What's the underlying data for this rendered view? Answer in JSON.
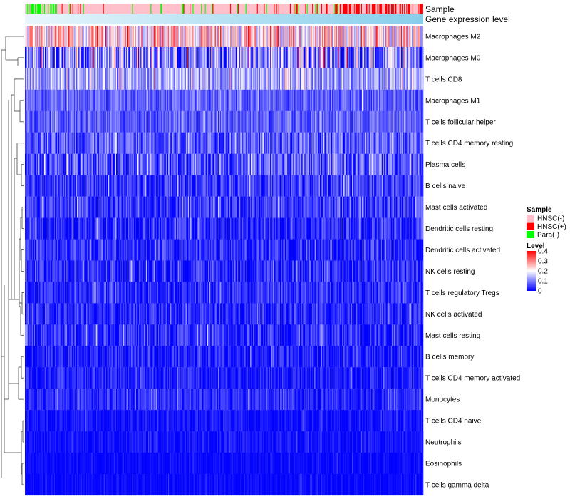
{
  "chart_data": {
    "type": "heatmap",
    "title": "",
    "annotation_tracks": [
      {
        "label": "Sample"
      },
      {
        "label": "Gene expression level"
      }
    ],
    "rows": [
      {
        "label": "Macrophages M2",
        "mean": 0.22,
        "spread": 0.12
      },
      {
        "label": "Macrophages M0",
        "mean": 0.1,
        "spread": 0.14
      },
      {
        "label": "T cells CD8",
        "mean": 0.13,
        "spread": 0.08
      },
      {
        "label": "Macrophages M1",
        "mean": 0.07,
        "spread": 0.05
      },
      {
        "label": "T cells follicular helper",
        "mean": 0.07,
        "spread": 0.05
      },
      {
        "label": "T cells CD4 memory resting",
        "mean": 0.07,
        "spread": 0.07
      },
      {
        "label": "Plasma cells",
        "mean": 0.06,
        "spread": 0.08
      },
      {
        "label": "B cells naive",
        "mean": 0.04,
        "spread": 0.06
      },
      {
        "label": "Mast cells activated",
        "mean": 0.04,
        "spread": 0.06
      },
      {
        "label": "Dendritic cells resting",
        "mean": 0.03,
        "spread": 0.06
      },
      {
        "label": "Dendritic cells activated",
        "mean": 0.03,
        "spread": 0.06
      },
      {
        "label": "NK cells resting",
        "mean": 0.03,
        "spread": 0.06
      },
      {
        "label": "T cells regulatory  Tregs",
        "mean": 0.03,
        "spread": 0.05
      },
      {
        "label": "NK cells activated",
        "mean": 0.03,
        "spread": 0.05
      },
      {
        "label": "Mast cells resting",
        "mean": 0.03,
        "spread": 0.06
      },
      {
        "label": "B cells memory",
        "mean": 0.02,
        "spread": 0.05
      },
      {
        "label": "T cells CD4 memory activated",
        "mean": 0.02,
        "spread": 0.04
      },
      {
        "label": "Monocytes",
        "mean": 0.03,
        "spread": 0.04
      },
      {
        "label": "T cells CD4 naive",
        "mean": 0.01,
        "spread": 0.03
      },
      {
        "label": "Neutrophils",
        "mean": 0.01,
        "spread": 0.03
      },
      {
        "label": "Eosinophils",
        "mean": 0.005,
        "spread": 0.02
      },
      {
        "label": "T cells gamma delta",
        "mean": 0.005,
        "spread": 0.02
      }
    ],
    "n_samples": 520,
    "value_range": [
      0,
      0.4
    ],
    "legends": {
      "sample": {
        "title": "Sample",
        "items": [
          {
            "label": "HNSC(-)",
            "color": "#ffc0cb"
          },
          {
            "label": "HNSC(+)",
            "color": "#ff0000"
          },
          {
            "label": "Para(-)",
            "color": "#00ff00"
          }
        ]
      },
      "level": {
        "title": "Level",
        "ticks": [
          "0.4",
          "0.3",
          "0.2",
          "0.1",
          "0"
        ],
        "tick_values": [
          0.4,
          0.3,
          0.2,
          0.1,
          0
        ]
      }
    },
    "colors": {
      "low": "#0000ff",
      "mid": "#ffffff",
      "high": "#ff0000",
      "expression_bar": "#87ceeb",
      "hnsc_neg": "#ffc0cb",
      "hnsc_pos": "#ff0000",
      "para_neg": "#00ff00"
    }
  }
}
